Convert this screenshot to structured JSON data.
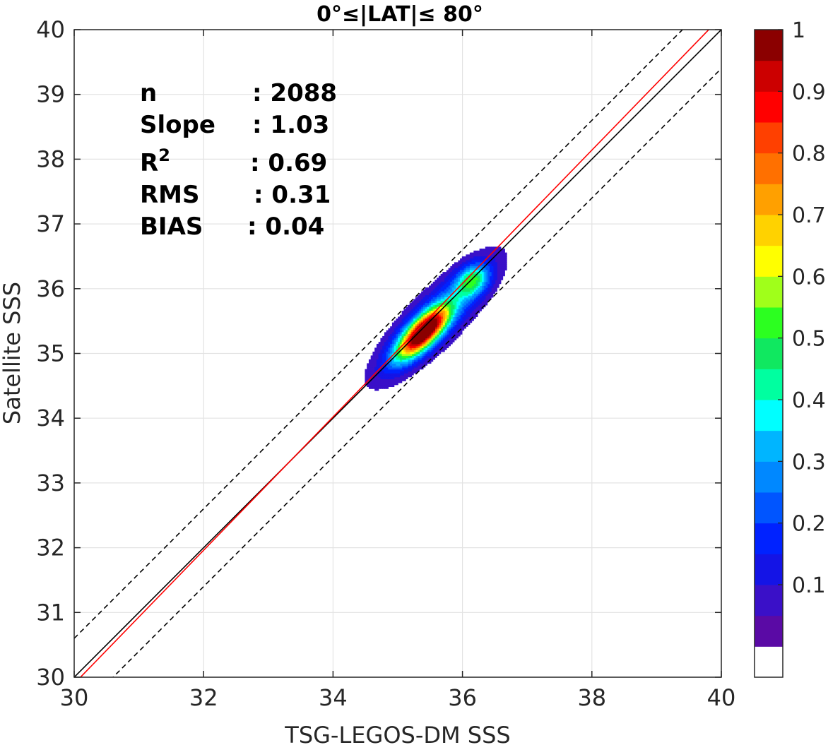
{
  "chart_data": {
    "type": "heatmap",
    "title": "0°≤|LAT|≤ 80°",
    "xlabel": "TSG-LEGOS-DM SSS",
    "ylabel": "Satellite SSS",
    "xlim": [
      30,
      40
    ],
    "ylim": [
      30,
      40
    ],
    "xticks": [
      "30",
      "32",
      "34",
      "36",
      "38",
      "40"
    ],
    "yticks": [
      "30",
      "31",
      "32",
      "33",
      "34",
      "35",
      "36",
      "37",
      "38",
      "39",
      "40"
    ],
    "grid": true,
    "stats": [
      {
        "label": "n",
        "value": ": 2088"
      },
      {
        "label": "Slope",
        "value": ": 1.03"
      },
      {
        "label": "R",
        "sup": "2",
        "value": ": 0.69"
      },
      {
        "label": "RMS",
        "value": ": 0.31"
      },
      {
        "label": "BIAS",
        "value": ": 0.04"
      }
    ],
    "lines": [
      {
        "name": "identity",
        "color": "#000000",
        "style": "solid",
        "x": [
          30,
          40
        ],
        "y": [
          30,
          40
        ]
      },
      {
        "name": "upper bound",
        "color": "#000000",
        "style": "dashed",
        "x": [
          30,
          40
        ],
        "y": [
          30.6,
          40.6
        ]
      },
      {
        "name": "lower bound",
        "color": "#000000",
        "style": "dashed",
        "x": [
          30,
          40
        ],
        "y": [
          29.4,
          39.4
        ]
      },
      {
        "name": "regression",
        "color": "#ff0000",
        "style": "solid",
        "x": [
          30,
          40
        ],
        "y": [
          29.9,
          40.2
        ]
      }
    ],
    "density_peak": {
      "x": 35.4,
      "y": 35.33,
      "value": 1.0
    },
    "secondary_peak": {
      "x": 36.15,
      "y": 36.12,
      "value": 0.55
    },
    "colorbar": {
      "ticks": [
        "0.1",
        "0.2",
        "0.3",
        "0.4",
        "0.5",
        "0.6",
        "0.7",
        "0.8",
        "0.9",
        "1"
      ],
      "range": [
        0,
        1
      ],
      "colors": [
        "#ffffff",
        "#5a0aa5",
        "#3a10c8",
        "#1414e6",
        "#0022ff",
        "#0055ff",
        "#0088ff",
        "#00b5ff",
        "#00ffff",
        "#00ffa0",
        "#10e860",
        "#2cff20",
        "#a0ff1a",
        "#ffff00",
        "#ffd200",
        "#ffa000",
        "#ff7000",
        "#ff4000",
        "#ff0000",
        "#cc0000",
        "#8b0000"
      ]
    }
  }
}
